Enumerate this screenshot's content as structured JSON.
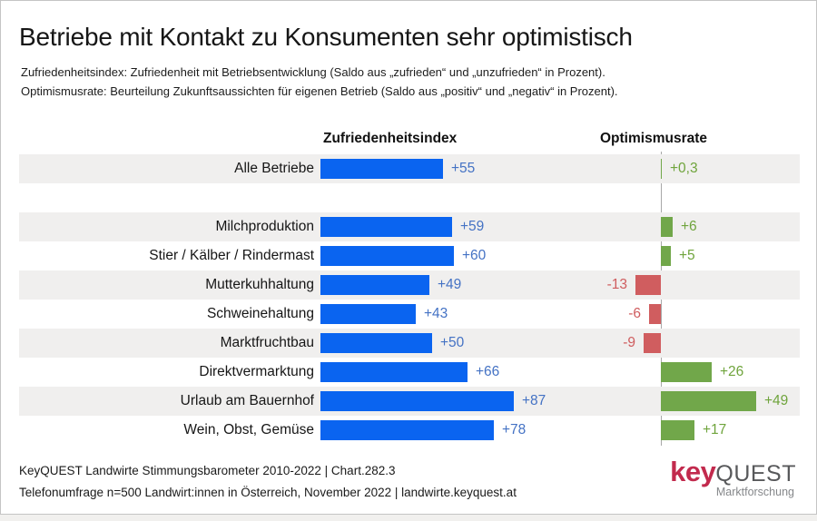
{
  "title": "Betriebe mit Kontakt zu Konsumenten sehr optimistisch",
  "subtitles": {
    "line1": "Zufriedenheitsindex: Zufriedenheit mit Betriebsentwicklung (Saldo aus „zufrieden“ und „unzufrieden“ in Prozent).",
    "line2": "Optimismusrate: Beurteilung Zukunftsaussichten für eigenen Betrieb (Saldo aus „positiv“ und „negativ“ in Prozent)."
  },
  "columns": {
    "left": "Zufriedenheitsindex",
    "right": "Optimismusrate"
  },
  "footer": {
    "line1": "KeyQUEST Landwirte Stimmungsbarometer 2010-2022  | Chart.282.3",
    "line2": "Telefonumfrage n=500 Landwirt:innen in Österreich, November 2022 | landwirte.keyquest.at"
  },
  "logo": {
    "key": "key",
    "quest": "QUEST",
    "tagline": "Marktforschung"
  },
  "colors": {
    "blue_bar": "#0a64f0",
    "blue_text": "#4472c4",
    "green_bar": "#71a74a",
    "green_text": "#6fa43c",
    "red_bar": "#d05d5f",
    "red_text": "#cf5c5e",
    "row_stripe": "#f0efee",
    "axis_line": "#a8a8a8",
    "logo_key": "#c22a4d",
    "logo_quest": "#58595b"
  },
  "chart_data": {
    "type": "bar",
    "orientation": "horizontal",
    "title": "Betriebe mit Kontakt zu Konsumenten sehr optimistisch",
    "categories": [
      "Alle Betriebe",
      "Milchproduktion",
      "Stier / Kälber / Rindermast",
      "Mutterkuhhaltung",
      "Schweinehaltung",
      "Marktfruchtbau",
      "Direktvermarktung",
      "Urlaub am Bauernhof",
      "Wein, Obst, Gemüse"
    ],
    "series": [
      {
        "name": "Zufriedenheitsindex",
        "values": [
          55,
          59,
          60,
          49,
          43,
          50,
          66,
          87,
          78
        ],
        "labels": [
          "+55",
          "+59",
          "+60",
          "+49",
          "+43",
          "+50",
          "+66",
          "+87",
          "+78"
        ]
      },
      {
        "name": "Optimismusrate",
        "values": [
          0.3,
          6,
          5,
          -13,
          -6,
          -9,
          26,
          49,
          17
        ],
        "labels": [
          "+0,3",
          "+6",
          "+5",
          "-13",
          "-6",
          "-9",
          "+26",
          "+49",
          "+17"
        ]
      }
    ],
    "gap_after_category_index": 0,
    "striped_category_indexes": [
      0,
      1,
      3,
      5,
      7
    ],
    "legend_position": "none",
    "grid": false,
    "value_labels_shown": true
  }
}
